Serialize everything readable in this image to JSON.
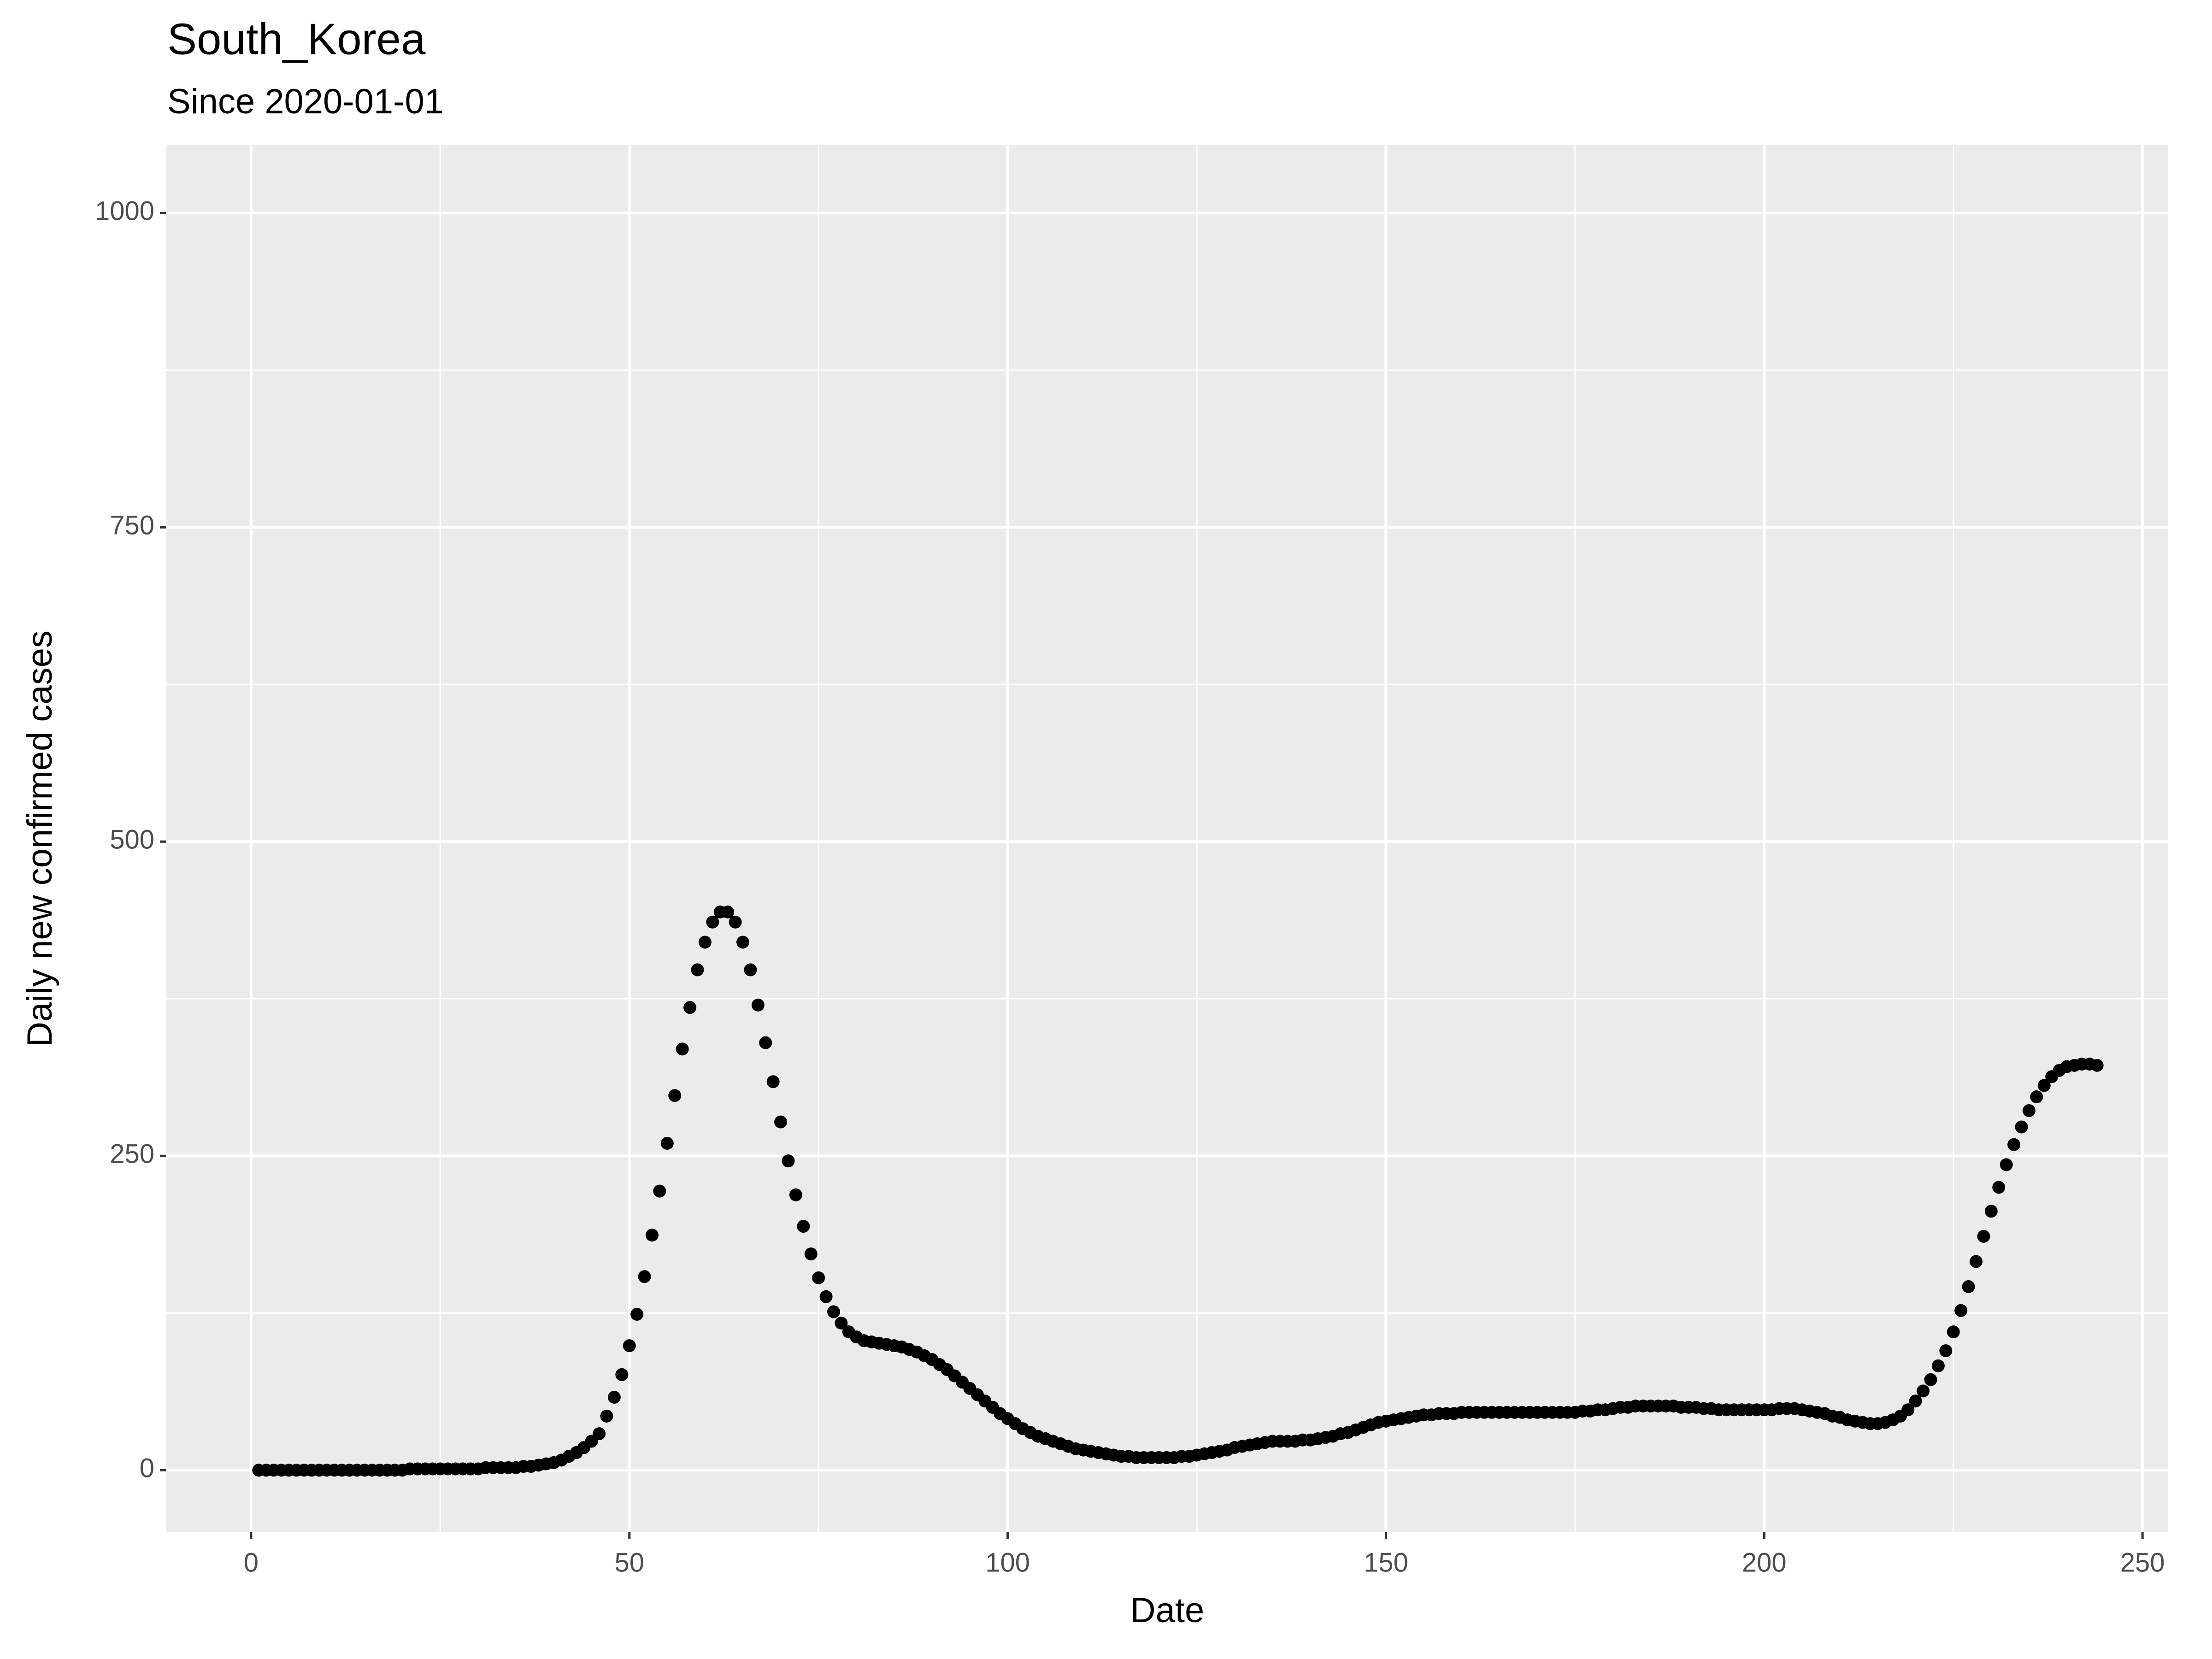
{
  "chart_data": {
    "type": "scatter",
    "title": "South_Korea",
    "subtitle": "Since 2020-01-01",
    "x_label": "Date",
    "y_label": "Daily new confirmed cases",
    "color": "#000000",
    "grid": true,
    "xlim": [
      -11.2,
      253.4
    ],
    "ylim": [
      -49.4,
      1054
    ],
    "xticks": [
      0,
      50,
      100,
      150,
      200,
      250
    ],
    "yticks": [
      0,
      250,
      500,
      750,
      1000
    ],
    "x": [
      1,
      2,
      3,
      4,
      5,
      6,
      7,
      8,
      9,
      10,
      11,
      12,
      13,
      14,
      15,
      16,
      17,
      18,
      19,
      20,
      21,
      22,
      23,
      24,
      25,
      26,
      27,
      28,
      29,
      30,
      31,
      32,
      33,
      34,
      35,
      36,
      37,
      38,
      39,
      40,
      41,
      42,
      43,
      44,
      45,
      46,
      47,
      48,
      49,
      50,
      51,
      52,
      53,
      54,
      55,
      56,
      57,
      58,
      59,
      60,
      61,
      62,
      63,
      64,
      65,
      66,
      67,
      68,
      69,
      70,
      71,
      72,
      73,
      74,
      75,
      76,
      77,
      78,
      79,
      80,
      81,
      82,
      83,
      84,
      85,
      86,
      87,
      88,
      89,
      90,
      91,
      92,
      93,
      94,
      95,
      96,
      97,
      98,
      99,
      100,
      101,
      102,
      103,
      104,
      105,
      106,
      107,
      108,
      109,
      110,
      111,
      112,
      113,
      114,
      115,
      116,
      117,
      118,
      119,
      120,
      121,
      122,
      123,
      124,
      125,
      126,
      127,
      128,
      129,
      130,
      131,
      132,
      133,
      134,
      135,
      136,
      137,
      138,
      139,
      140,
      141,
      142,
      143,
      144,
      145,
      146,
      147,
      148,
      149,
      150,
      151,
      152,
      153,
      154,
      155,
      156,
      157,
      158,
      159,
      160,
      161,
      162,
      163,
      164,
      165,
      166,
      167,
      168,
      169,
      170,
      171,
      172,
      173,
      174,
      175,
      176,
      177,
      178,
      179,
      180,
      181,
      182,
      183,
      184,
      185,
      186,
      187,
      188,
      189,
      190,
      191,
      192,
      193,
      194,
      195,
      196,
      197,
      198,
      199,
      200,
      201,
      202,
      203,
      204,
      205,
      206,
      207,
      208,
      209,
      210,
      211,
      212,
      213,
      214,
      215,
      216,
      217,
      218,
      219,
      220,
      221,
      222,
      223,
      224,
      225,
      226,
      227,
      228,
      229,
      230,
      231,
      232,
      233,
      234,
      235,
      236,
      237,
      238,
      239,
      240,
      241,
      242,
      243,
      244
    ],
    "values": [
      0,
      0,
      0,
      0,
      0,
      0,
      0,
      0,
      0,
      0,
      0,
      0,
      0,
      0,
      0,
      0,
      0,
      0,
      0,
      0,
      1,
      1,
      1,
      1,
      1,
      1,
      1,
      1,
      1,
      1,
      2,
      2,
      2,
      2,
      2,
      3,
      3,
      4,
      5,
      6,
      8,
      11,
      14,
      18,
      23,
      29,
      43,
      58,
      76,
      99,
      124,
      154,
      187,
      222,
      260,
      298,
      335,
      368,
      398,
      420,
      436,
      444,
      444,
      436,
      420,
      398,
      370,
      340,
      309,
      277,
      246,
      219,
      194,
      172,
      153,
      138,
      126,
      117,
      110,
      106,
      103,
      102,
      101,
      100,
      99,
      98,
      96,
      94,
      91,
      88,
      84,
      80,
      75,
      70,
      65,
      60,
      55,
      50,
      45,
      41,
      37,
      33,
      30,
      27,
      25,
      23,
      21,
      19,
      17,
      16,
      15,
      14,
      13,
      12,
      11,
      11,
      10,
      10,
      10,
      10,
      10,
      10,
      11,
      11,
      12,
      13,
      14,
      15,
      16,
      18,
      19,
      20,
      21,
      22,
      23,
      23,
      23,
      23,
      24,
      24,
      25,
      26,
      27,
      29,
      30,
      32,
      34,
      36,
      38,
      39,
      40,
      41,
      42,
      43,
      44,
      44,
      45,
      45,
      45,
      46,
      46,
      46,
      46,
      46,
      46,
      46,
      46,
      46,
      46,
      46,
      46,
      46,
      46,
      46,
      46,
      47,
      47,
      48,
      48,
      49,
      50,
      50,
      51,
      51,
      51,
      51,
      51,
      51,
      50,
      50,
      50,
      49,
      49,
      48,
      48,
      48,
      48,
      48,
      48,
      48,
      48,
      49,
      49,
      49,
      48,
      47,
      46,
      45,
      43,
      42,
      40,
      39,
      38,
      37,
      37,
      38,
      40,
      43,
      48,
      55,
      63,
      72,
      83,
      95,
      110,
      127,
      146,
      166,
      186,
      206,
      225,
      243,
      259,
      273,
      286,
      297,
      306,
      313,
      318,
      321,
      322,
      323,
      323,
      322
    ]
  }
}
